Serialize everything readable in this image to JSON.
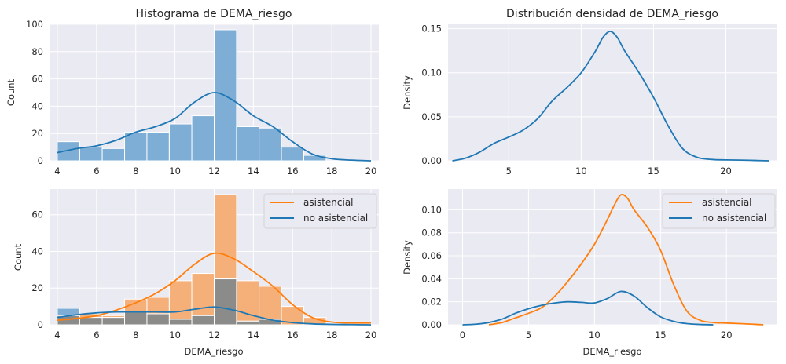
{
  "colors": {
    "background": "#eaeaf2",
    "grid": "#ffffff",
    "blue": "#1f77b4",
    "blue_fill": "#7eaed5",
    "orange": "#ff7f0e",
    "orange_fill": "#f5b07a",
    "overlap_fill": "#8b8c8a"
  },
  "chart_data": [
    {
      "type": "bar",
      "title": "Histograma de DEMA_riesgo",
      "xlabel": "",
      "ylabel": "Count",
      "xlim": [
        3.6,
        20.4
      ],
      "ylim": [
        0,
        100
      ],
      "xticks": [
        4,
        6,
        8,
        10,
        12,
        14,
        16,
        18,
        20
      ],
      "yticks": [
        0,
        20,
        40,
        60,
        80,
        100
      ],
      "bin_edges": [
        4,
        5.14,
        6.29,
        7.43,
        8.57,
        9.71,
        10.86,
        12,
        13.14,
        14.29,
        15.43,
        16.57,
        17.71,
        18.86,
        20
      ],
      "values": [
        14,
        10,
        9,
        21,
        21,
        27,
        33,
        96,
        25,
        24,
        10,
        4,
        0,
        0
      ],
      "kde": {
        "x": [
          4,
          5,
          6,
          7,
          8,
          9,
          10,
          11,
          12,
          13,
          14,
          15,
          16,
          17,
          18,
          19,
          20
        ],
        "y": [
          6,
          9,
          11,
          15,
          21,
          25,
          31,
          43,
          50,
          44,
          33,
          25,
          14,
          5,
          1.5,
          0.5,
          0
        ]
      },
      "grid": true
    },
    {
      "type": "line",
      "title": "Distribución densidad de DEMA_riesgo",
      "xlabel": "",
      "ylabel": "Density",
      "xlim": [
        0.8,
        23.5
      ],
      "ylim": [
        0,
        0.155
      ],
      "xticks": [
        5,
        10,
        15,
        20
      ],
      "yticks": [
        0.0,
        0.05,
        0.1,
        0.15
      ],
      "ytick_labels": [
        "0.00",
        "0.05",
        "0.10",
        "0.15"
      ],
      "x": [
        1.1,
        2,
        3,
        4,
        5,
        6,
        7,
        8,
        9,
        10,
        11,
        11.5,
        12,
        12.5,
        13,
        14,
        15,
        16,
        17,
        18,
        19,
        20,
        21,
        22,
        23
      ],
      "y": [
        0.0,
        0.003,
        0.01,
        0.02,
        0.027,
        0.035,
        0.048,
        0.068,
        0.083,
        0.1,
        0.125,
        0.14,
        0.147,
        0.14,
        0.125,
        0.1,
        0.072,
        0.04,
        0.014,
        0.004,
        0.0015,
        0.001,
        0.0008,
        0.0004,
        0.0
      ],
      "grid": true
    },
    {
      "type": "bar",
      "title": "",
      "xlabel": "DEMA_riesgo",
      "ylabel": "Count",
      "xlim": [
        3.6,
        20.4
      ],
      "ylim": [
        0,
        74
      ],
      "xticks": [
        4,
        6,
        8,
        10,
        12,
        14,
        16,
        18,
        20
      ],
      "yticks": [
        0,
        20,
        40,
        60
      ],
      "legend": "top-right",
      "bin_edges": [
        4,
        5.14,
        6.29,
        7.43,
        8.57,
        9.71,
        10.86,
        12,
        13.14,
        14.29,
        15.43,
        16.57,
        17.71,
        18.86,
        20
      ],
      "series": [
        {
          "name": "asistencial",
          "values": [
            5,
            6,
            5,
            14,
            15,
            24,
            28,
            71,
            24,
            21,
            10,
            4,
            0,
            0
          ],
          "kde": {
            "x": [
              4,
              5,
              6,
              7,
              8,
              9,
              10,
              11,
              12,
              13,
              14,
              15,
              16,
              17,
              18,
              19,
              20
            ],
            "y": [
              2.5,
              3.5,
              5,
              8,
              12,
              17,
              24,
              33,
              39,
              36,
              29,
              21,
              11,
              4,
              1.5,
              1,
              1
            ]
          }
        },
        {
          "name": "no asistencial",
          "values": [
            9,
            4,
            4,
            7,
            6,
            3,
            5,
            25,
            2,
            3,
            0,
            0,
            0,
            0
          ],
          "kde": {
            "x": [
              4,
              5,
              6,
              7,
              8,
              9,
              10,
              11,
              12,
              13,
              14,
              15,
              16,
              17,
              18,
              19,
              20
            ],
            "y": [
              4,
              5.5,
              6.5,
              7,
              7,
              7,
              7,
              8.5,
              9.7,
              8,
              5,
              2.5,
              1.2,
              0.5,
              0.2,
              0.1,
              0
            ]
          }
        }
      ],
      "grid": true
    },
    {
      "type": "line",
      "title": "",
      "xlabel": "DEMA_riesgo",
      "ylabel": "Density",
      "xlim": [
        -1.1,
        23.8
      ],
      "ylim": [
        0,
        0.118
      ],
      "xticks": [
        0,
        5,
        10,
        15,
        20
      ],
      "yticks": [
        0.0,
        0.02,
        0.04,
        0.06,
        0.08,
        0.1
      ],
      "ytick_labels": [
        "0.00",
        "0.02",
        "0.04",
        "0.06",
        "0.08",
        "0.10"
      ],
      "legend": "top-right",
      "series": [
        {
          "name": "asistencial",
          "x": [
            2,
            3,
            4,
            5,
            6,
            7,
            8,
            9,
            10,
            11,
            11.5,
            12,
            12.5,
            13,
            14,
            15,
            16,
            17,
            18,
            19,
            20,
            21,
            22,
            22.8
          ],
          "y": [
            0.0,
            0.002,
            0.006,
            0.01,
            0.015,
            0.025,
            0.038,
            0.053,
            0.07,
            0.092,
            0.104,
            0.113,
            0.11,
            0.1,
            0.085,
            0.065,
            0.035,
            0.012,
            0.004,
            0.002,
            0.0015,
            0.001,
            0.0005,
            0.0
          ]
        },
        {
          "name": "no asistencial",
          "x": [
            0,
            1,
            2,
            3,
            4,
            5,
            6,
            7,
            8,
            9,
            10,
            11,
            12,
            13,
            14,
            15,
            16,
            17,
            18,
            19
          ],
          "y": [
            0.0,
            0.0005,
            0.002,
            0.005,
            0.01,
            0.014,
            0.017,
            0.019,
            0.02,
            0.0195,
            0.019,
            0.023,
            0.029,
            0.025,
            0.015,
            0.007,
            0.003,
            0.001,
            0.0003,
            0.0
          ]
        }
      ],
      "grid": true
    }
  ]
}
